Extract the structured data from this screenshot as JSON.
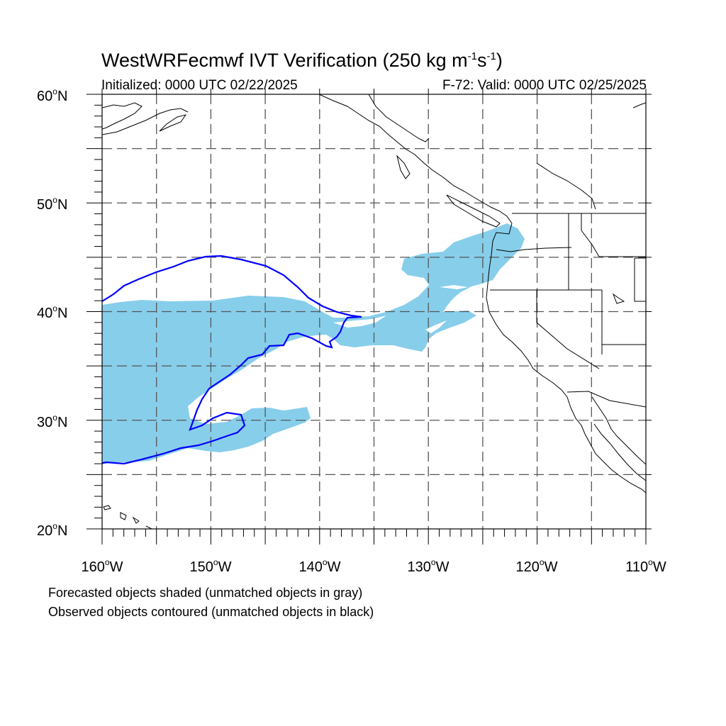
{
  "title": {
    "main": "WestWRFecmwf IVT Verification (250 kg m",
    "exp1": "-1",
    "mid": "s",
    "exp2": "-1",
    "end": ")"
  },
  "subtitle": {
    "initialized": "Initialized: 0000 UTC 02/22/2025",
    "valid": "F-72: Valid: 0000 UTC 02/25/2025"
  },
  "axes": {
    "lat_labels": [
      {
        "value": "60",
        "suffix": "N"
      },
      {
        "value": "50",
        "suffix": "N"
      },
      {
        "value": "40",
        "suffix": "N"
      },
      {
        "value": "30",
        "suffix": "N"
      },
      {
        "value": "20",
        "suffix": "N"
      }
    ],
    "lon_labels": [
      {
        "value": "160",
        "suffix": "W"
      },
      {
        "value": "150",
        "suffix": "W"
      },
      {
        "value": "140",
        "suffix": "W"
      },
      {
        "value": "130",
        "suffix": "W"
      },
      {
        "value": "120",
        "suffix": "W"
      },
      {
        "value": "110",
        "suffix": "W"
      }
    ],
    "lon_range": [
      -160,
      -110
    ],
    "lat_range": [
      20,
      60
    ],
    "grid": "dashed every 5 degrees"
  },
  "colors": {
    "forecast_fill": "#87ceeb",
    "observed_contour": "#0000ff",
    "coastline": "#000000",
    "grid": "#555555"
  },
  "notes": {
    "line1": "Forecasted objects shaded (unmatched objects in gray)",
    "line2": "Observed objects contoured (unmatched objects in black)"
  }
}
